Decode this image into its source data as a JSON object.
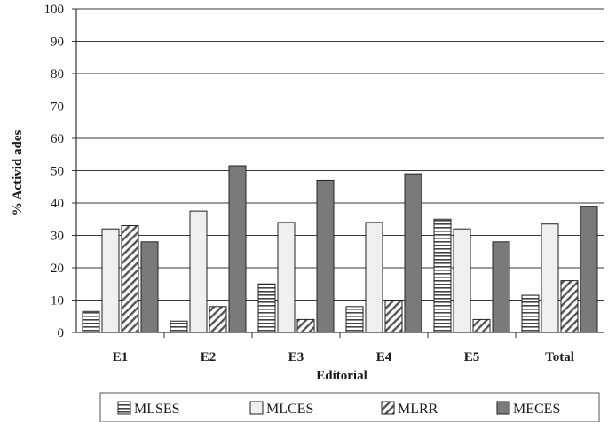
{
  "chart_data": {
    "type": "bar",
    "title": "",
    "xlabel": "Editorial",
    "ylabel": "% Activid ades",
    "ylim": [
      0,
      100
    ],
    "yticks": [
      0,
      10,
      20,
      30,
      40,
      50,
      60,
      70,
      80,
      90,
      100
    ],
    "grid": "horizontal",
    "legend_position": "bottom",
    "categories": [
      "E1",
      "E2",
      "E3",
      "E4",
      "E5",
      "Total"
    ],
    "series": [
      {
        "name": "MLSES",
        "values": [
          6.5,
          3.5,
          15,
          8,
          35,
          11.5
        ],
        "pattern": "horizontal-stripes",
        "color": "#ffffff"
      },
      {
        "name": "MLCES",
        "values": [
          32,
          37.5,
          34,
          34,
          32,
          33.5
        ],
        "pattern": "solid",
        "color": "#efefef"
      },
      {
        "name": "MLRR",
        "values": [
          33,
          8,
          4,
          10,
          4,
          16
        ],
        "pattern": "diagonal-stripes",
        "color": "#ffffff"
      },
      {
        "name": "MECES",
        "values": [
          28,
          51.5,
          47,
          49,
          28,
          39
        ],
        "pattern": "solid",
        "color": "#7a7a7a"
      }
    ]
  }
}
